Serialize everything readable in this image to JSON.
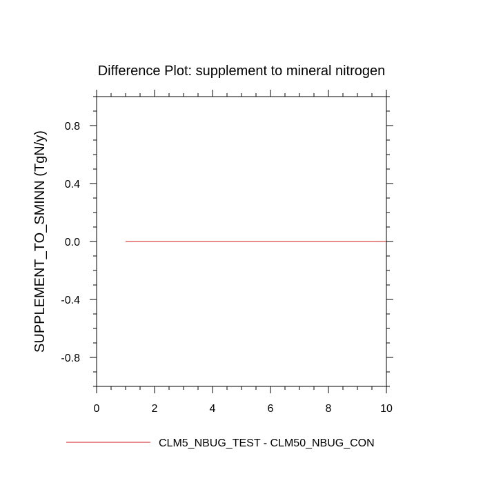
{
  "chart_data": {
    "type": "line",
    "title": "Difference Plot: supplement to mineral nitrogen",
    "xlabel": "",
    "ylabel": "SUPPLEMENT_TO_SMINN  (TgN/y)",
    "xlim": [
      0,
      10
    ],
    "ylim": [
      -1,
      1
    ],
    "xticks": [
      "0",
      "2",
      "4",
      "6",
      "8",
      "10"
    ],
    "yticks": [
      "-0.8",
      "-0.4",
      "0.0",
      "0.4",
      "0.8"
    ],
    "grid": false,
    "legend_position": "bottom",
    "series": [
      {
        "name": "CLM5_NBUG_TEST - CLM50_NBUG_CON",
        "color": "#e06666",
        "x": [
          1,
          2,
          3,
          4,
          5,
          6,
          7,
          8,
          9,
          10
        ],
        "y": [
          0,
          0,
          0,
          0,
          0,
          0,
          0,
          0,
          0,
          0
        ]
      }
    ]
  }
}
